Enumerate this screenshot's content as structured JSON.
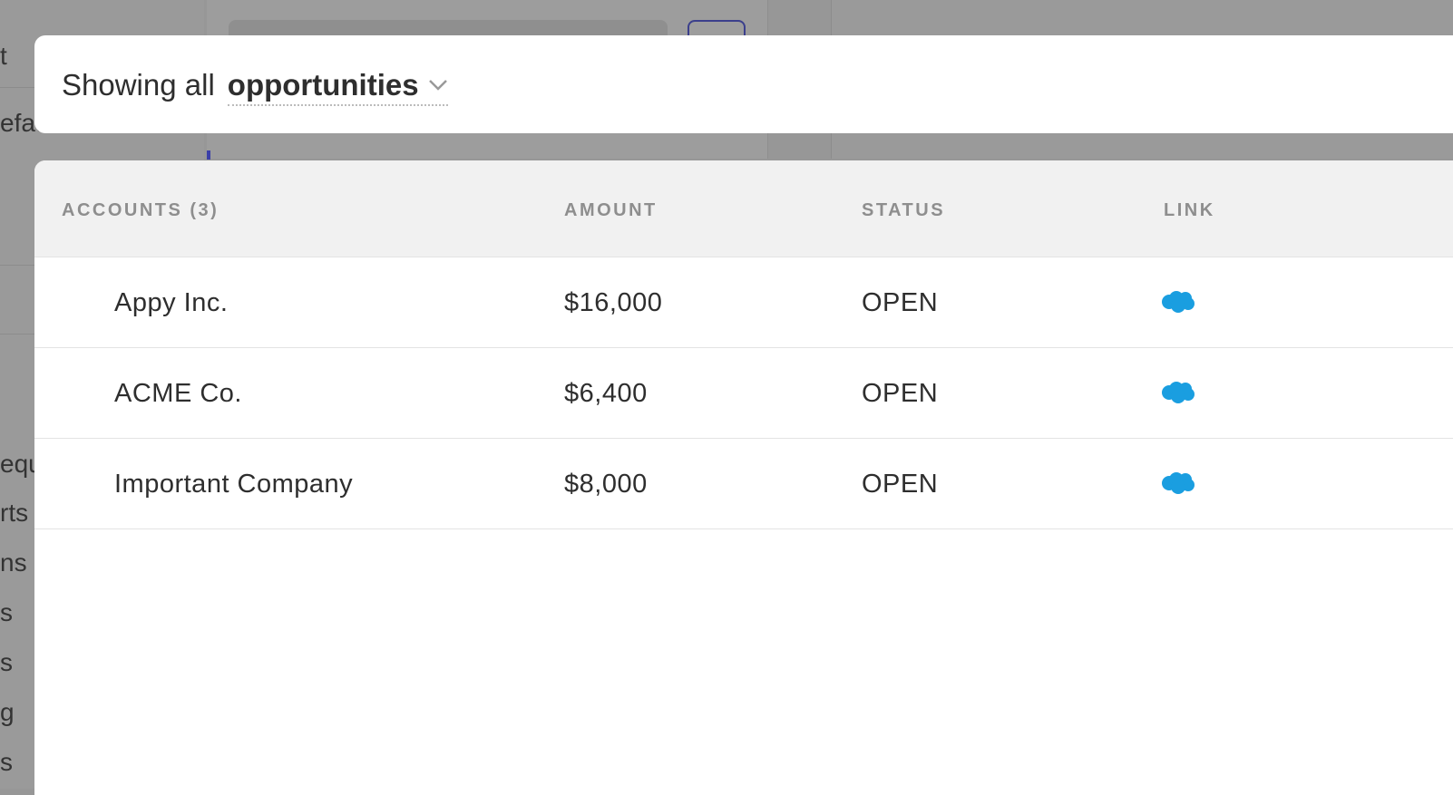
{
  "background": {
    "sidebar_fragments": [
      "t",
      "efau",
      "equ",
      "rts",
      "ns",
      "s",
      "s",
      "g",
      "s"
    ]
  },
  "header": {
    "prefix": "Showing all",
    "selected_type": "opportunities",
    "dropdown_icon": "chevron-down-icon"
  },
  "table": {
    "columns": [
      "ACCOUNTS (3)",
      "AMOUNT",
      "STATUS",
      "LINK"
    ],
    "rows": [
      {
        "account": "Appy Inc.",
        "amount": "$16,000",
        "status": "OPEN",
        "link_icon": "salesforce-cloud-icon"
      },
      {
        "account": "ACME Co.",
        "amount": "$6,400",
        "status": "OPEN",
        "link_icon": "salesforce-cloud-icon"
      },
      {
        "account": "Important Company",
        "amount": "$8,000",
        "status": "OPEN",
        "link_icon": "salesforce-cloud-icon"
      }
    ]
  },
  "colors": {
    "link_icon": "#1a9ee0",
    "accent": "#3b3f8c"
  }
}
